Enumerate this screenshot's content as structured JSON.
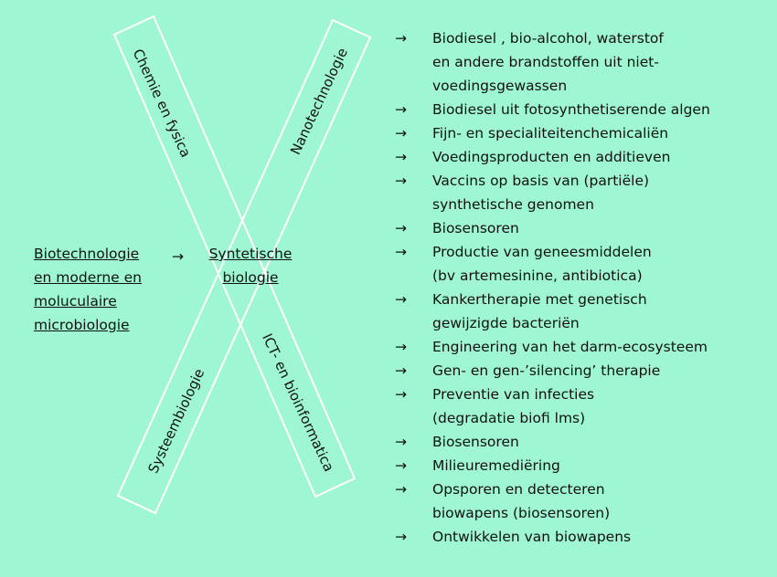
{
  "bands": {
    "top_left": "Chemie en fysica",
    "top_right": "Nanotechnologie",
    "bottom_left": "Systeembiologie",
    "bottom_right": "ICT- en bioinformatica"
  },
  "arrow_glyph": "→",
  "source": {
    "lines": [
      "Biotechnologie",
      "en moderne en",
      "moluculaire",
      "microbiologie"
    ]
  },
  "center": {
    "lines": [
      "Syntetische",
      "biologie"
    ]
  },
  "applications": [
    {
      "lines": [
        "Biodiesel , bio-alcohol, waterstof",
        "en andere brandstoffen uit niet-",
        "voedingsgewassen"
      ]
    },
    {
      "lines": [
        "Biodiesel uit fotosynthetiserende algen"
      ]
    },
    {
      "lines": [
        "Fijn- en specialiteitenchemicaliën"
      ]
    },
    {
      "lines": [
        "Voedingsproducten en additieven"
      ]
    },
    {
      "lines": [
        "Vaccins op basis van (partiële)",
        "synthetische genomen"
      ]
    },
    {
      "lines": [
        "Biosensoren"
      ]
    },
    {
      "lines": [
        "Productie van geneesmiddelen",
        "(bv artemesinine, antibiotica)"
      ]
    },
    {
      "lines": [
        "Kankertherapie met genetisch",
        "gewijzigde bacteriën"
      ]
    },
    {
      "lines": [
        "Engineering van het darm-ecosysteem"
      ]
    },
    {
      "lines": [
        "Gen- en gen-’silencing’ therapie"
      ]
    },
    {
      "lines": [
        "Preventie van infecties",
        "(degradatie biofi lms)"
      ]
    },
    {
      "lines": [
        "Biosensoren"
      ]
    },
    {
      "lines": [
        "Milieuremediëring"
      ]
    },
    {
      "lines": [
        "Opsporen en detecteren",
        "biowapens (biosensoren)"
      ]
    },
    {
      "lines": [
        "Ontwikkelen van biowapens"
      ]
    }
  ]
}
